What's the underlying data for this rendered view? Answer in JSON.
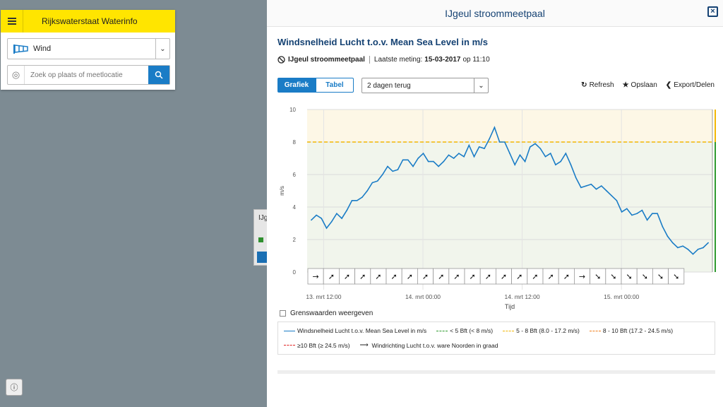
{
  "app": {
    "brand": "Rijkswaterstaat Waterinfo"
  },
  "left": {
    "parameter_select": {
      "value": "Wind"
    },
    "search": {
      "placeholder": "Zoek op plaats of meetlocatie"
    },
    "mini_card_label": "IJg"
  },
  "panel": {
    "title": "IJgeul stroommeetpaal",
    "chart_title": "Windsnelheid Lucht t.o.v. Mean Sea Level in m/s",
    "station": "IJgeul stroommeetpaal",
    "last_label": "Laatste meting:",
    "last_date": "15-03-2017",
    "last_time": "op 11:10",
    "tabs": [
      "Grafiek",
      "Tabel"
    ],
    "period": "2 dagen terug",
    "actions": {
      "refresh": "Refresh",
      "save": "Opslaan",
      "export": "Export/Delen"
    },
    "threshold_checkbox": "Grenswaarden weergeven",
    "legend": [
      {
        "label": "Windsnelheid Lucht t.o.v. Mean Sea Level in m/s",
        "color": "#1a7cc6",
        "style": "solid"
      },
      {
        "label": "< 5 Bft (< 8 m/s)",
        "color": "#2f9a2f",
        "style": "dashed"
      },
      {
        "label": "5 - 8 Bft (8.0 - 17.2 m/s)",
        "color": "#f2b705",
        "style": "dashed"
      },
      {
        "label": "8 - 10 Bft (17.2 - 24.5 m/s)",
        "color": "#f07f1d",
        "style": "dashed"
      },
      {
        "label": "≥10 Bft (≥ 24.5 m/s)",
        "color": "#e02020",
        "style": "dashed"
      },
      {
        "label": "Windrichting Lucht t.o.v. ware Noorden in graad",
        "color": "#222222",
        "style": "arrow"
      }
    ]
  },
  "chart_data": {
    "type": "line",
    "ylabel": "m/s",
    "xlabel": "Tijd",
    "ylim": [
      0,
      10
    ],
    "yticks": [
      0,
      2,
      4,
      6,
      8,
      10
    ],
    "xticks": [
      "13. mrt 12:00",
      "14. mrt 00:00",
      "14. mrt 12:00",
      "15. mrt 00:00"
    ],
    "x_range_hours": [
      -2,
      47
    ],
    "threshold": 8,
    "series": [
      {
        "name": "Windsnelheid Lucht t.o.v. Mean Sea Level in m/s",
        "values": [
          3.2,
          3.5,
          3.3,
          2.7,
          3.1,
          3.6,
          3.3,
          3.8,
          4.4,
          4.4,
          4.6,
          5.0,
          5.5,
          5.6,
          6.0,
          6.5,
          6.2,
          6.3,
          6.9,
          6.9,
          6.5,
          7.0,
          7.3,
          6.8,
          6.8,
          6.5,
          6.8,
          7.2,
          7.0,
          7.3,
          7.1,
          7.8,
          7.1,
          7.7,
          7.6,
          8.2,
          8.9,
          8.0,
          8.0,
          7.3,
          6.6,
          7.2,
          6.8,
          7.7,
          7.9,
          7.6,
          7.1,
          7.3,
          6.6,
          6.8,
          7.3,
          6.6,
          5.8,
          5.2,
          5.3,
          5.4,
          5.1,
          5.3,
          5.0,
          4.7,
          4.4,
          3.7,
          3.9,
          3.5,
          3.6,
          3.8,
          3.2,
          3.6,
          3.6,
          2.8,
          2.2,
          1.8,
          1.5,
          1.6,
          1.4,
          1.1,
          1.4,
          1.5,
          1.8
        ]
      }
    ],
    "wind_direction_glyphs": [
      "→",
      "➚",
      "➚",
      "➚",
      "➚",
      "➚",
      "➚",
      "➚",
      "➚",
      "➚",
      "➚",
      "➚",
      "➚",
      "➚",
      "➚",
      "➚",
      "➚",
      "→",
      "➘",
      "➘",
      "➘",
      "➘",
      "➘",
      "➘"
    ]
  }
}
